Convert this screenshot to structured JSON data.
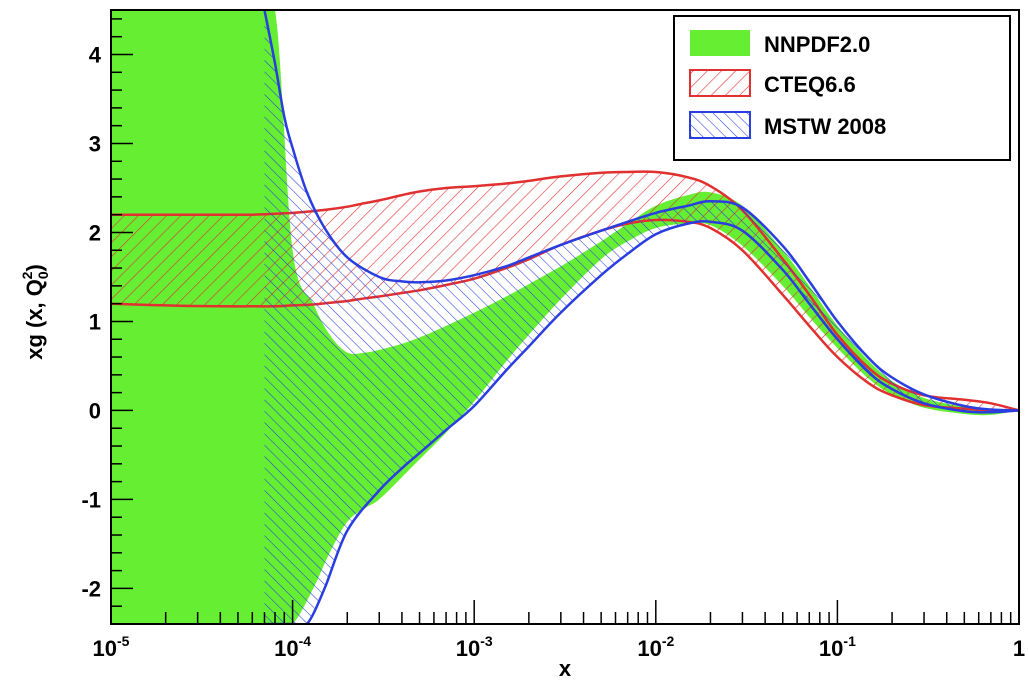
{
  "chart_data": {
    "type": "area",
    "xlabel": "x",
    "ylabel": "xg (x, Q",
    "ylabel_sub": "0",
    "ylabel_sup": "2",
    "ylabel_end": ")",
    "x_scale": "log",
    "xlim": [
      1e-05,
      1
    ],
    "ylim": [
      -2.4,
      4.5
    ],
    "x_ticks": [
      {
        "value": 1e-05,
        "base": "10",
        "exp": "-5"
      },
      {
        "value": 0.0001,
        "base": "10",
        "exp": "-4"
      },
      {
        "value": 0.001,
        "base": "10",
        "exp": "-3"
      },
      {
        "value": 0.01,
        "base": "10",
        "exp": "-2"
      },
      {
        "value": 0.1,
        "base": "10",
        "exp": "-1"
      },
      {
        "value": 1,
        "base": "1",
        "exp": ""
      }
    ],
    "y_ticks": [
      -2,
      -1,
      0,
      1,
      2,
      3,
      4
    ],
    "legend_position": "top-right",
    "series": [
      {
        "name": "NNPDF2.0",
        "style": "filled",
        "color": "#66ee33",
        "x": [
          1e-05,
          2e-05,
          4e-05,
          6e-05,
          8e-05,
          0.0001,
          0.00013,
          0.00016,
          0.0002,
          0.00025,
          0.0003,
          0.0004,
          0.0005,
          0.0007,
          0.001,
          0.0015,
          0.002,
          0.003,
          0.005,
          0.007,
          0.01,
          0.015,
          0.02,
          0.03,
          0.05,
          0.07,
          0.1,
          0.15,
          0.2,
          0.3,
          0.5,
          0.7,
          1
        ],
        "upper": [
          4.5,
          4.5,
          4.5,
          4.5,
          4.5,
          1.8,
          1.2,
          0.85,
          0.65,
          0.65,
          0.68,
          0.75,
          0.82,
          0.95,
          1.1,
          1.28,
          1.42,
          1.62,
          1.9,
          2.1,
          2.3,
          2.42,
          2.45,
          2.3,
          1.8,
          1.4,
          0.95,
          0.55,
          0.33,
          0.14,
          0.04,
          0.0,
          0.0
        ],
        "lower": [
          -2.4,
          -2.4,
          -2.4,
          -2.4,
          -2.4,
          -2.4,
          -2.0,
          -1.6,
          -1.25,
          -1.1,
          -1.0,
          -0.75,
          -0.55,
          -0.25,
          0.1,
          0.55,
          0.85,
          1.25,
          1.7,
          1.9,
          2.05,
          2.1,
          2.08,
          1.85,
          1.4,
          1.05,
          0.7,
          0.35,
          0.18,
          0.03,
          -0.04,
          -0.05,
          0.0
        ]
      },
      {
        "name": "CTEQ6.6",
        "style": "hatched",
        "color": "#e03030",
        "x": [
          1e-05,
          2e-05,
          4e-05,
          6e-05,
          8e-05,
          0.0001,
          0.00013,
          0.00016,
          0.0002,
          0.00025,
          0.0003,
          0.0004,
          0.0005,
          0.0007,
          0.001,
          0.0015,
          0.002,
          0.003,
          0.005,
          0.007,
          0.01,
          0.015,
          0.02,
          0.03,
          0.05,
          0.07,
          0.1,
          0.15,
          0.2,
          0.3,
          0.5,
          0.7,
          1
        ],
        "upper": [
          2.2,
          2.2,
          2.2,
          2.2,
          2.21,
          2.22,
          2.24,
          2.26,
          2.29,
          2.33,
          2.36,
          2.42,
          2.46,
          2.5,
          2.52,
          2.55,
          2.58,
          2.63,
          2.67,
          2.68,
          2.68,
          2.62,
          2.52,
          2.25,
          1.7,
          1.3,
          0.85,
          0.47,
          0.3,
          0.17,
          0.12,
          0.08,
          0.0
        ],
        "lower": [
          1.2,
          1.18,
          1.17,
          1.17,
          1.17,
          1.18,
          1.19,
          1.21,
          1.23,
          1.26,
          1.28,
          1.32,
          1.35,
          1.41,
          1.48,
          1.6,
          1.7,
          1.86,
          2.02,
          2.1,
          2.14,
          2.12,
          2.05,
          1.8,
          1.3,
          0.95,
          0.6,
          0.3,
          0.17,
          0.06,
          0.02,
          0.0,
          0.0
        ]
      },
      {
        "name": "MSTW 2008",
        "style": "hatched",
        "color": "#2a3ee0",
        "x": [
          7e-05,
          8e-05,
          9e-05,
          0.0001,
          0.00012,
          0.00015,
          0.0002,
          0.0003,
          0.0004,
          0.0005,
          0.0007,
          0.001,
          0.0015,
          0.002,
          0.003,
          0.005,
          0.007,
          0.01,
          0.015,
          0.02,
          0.03,
          0.05,
          0.07,
          0.1,
          0.15,
          0.2,
          0.3,
          0.5,
          0.7,
          1
        ],
        "upper": [
          4.5,
          3.9,
          3.3,
          2.95,
          2.45,
          2.05,
          1.72,
          1.5,
          1.45,
          1.44,
          1.46,
          1.52,
          1.62,
          1.72,
          1.86,
          2.02,
          2.12,
          2.22,
          2.3,
          2.35,
          2.28,
          1.85,
          1.45,
          1.0,
          0.58,
          0.37,
          0.18,
          0.05,
          0.01,
          0.0
        ],
        "lower": [
          -2.4,
          -2.4,
          -2.4,
          -2.4,
          -2.4,
          -2.0,
          -1.35,
          -0.9,
          -0.65,
          -0.48,
          -0.22,
          0.05,
          0.45,
          0.72,
          1.1,
          1.52,
          1.76,
          1.98,
          2.1,
          2.12,
          2.02,
          1.58,
          1.2,
          0.8,
          0.42,
          0.24,
          0.08,
          -0.01,
          -0.02,
          0.0
        ]
      }
    ]
  }
}
